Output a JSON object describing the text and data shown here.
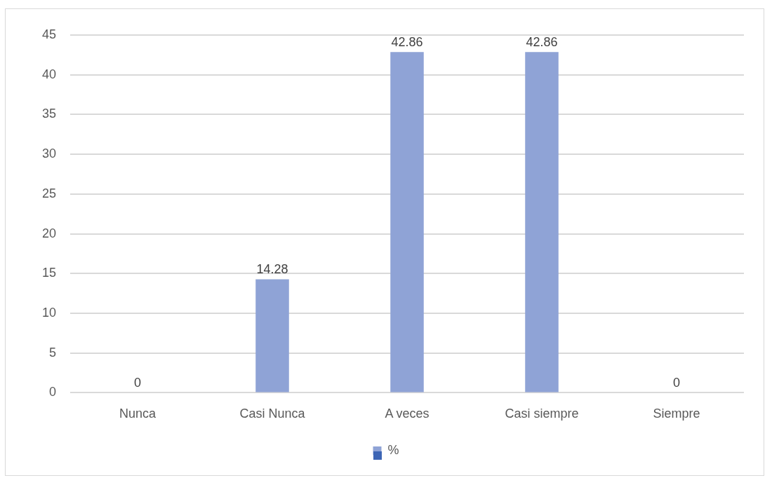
{
  "chart_data": {
    "type": "bar",
    "categories": [
      "Nunca",
      "Casi Nunca",
      "A veces",
      "Casi siempre",
      "Siempre"
    ],
    "series": [
      {
        "name": "%",
        "color": "#8fa3d6",
        "values": [
          0,
          14.28,
          42.86,
          42.86,
          0
        ]
      }
    ],
    "ylim": [
      0,
      45
    ],
    "yticks": [
      0,
      5,
      10,
      15,
      20,
      25,
      30,
      35,
      40,
      45
    ],
    "grid": "y",
    "legend": "bottom",
    "data_labels": true
  }
}
